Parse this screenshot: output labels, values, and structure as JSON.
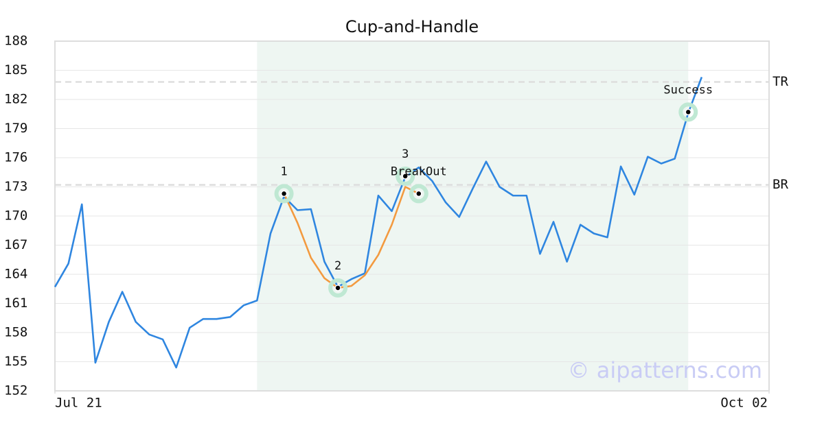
{
  "chart_data": {
    "type": "line",
    "title": "Cup-and-Handle",
    "x": [
      0,
      1,
      2,
      3,
      4,
      5,
      6,
      7,
      8,
      9,
      10,
      11,
      12,
      13,
      14,
      15,
      16,
      17,
      18,
      19,
      20,
      21,
      22,
      23,
      24,
      25,
      26,
      27,
      28,
      29,
      30,
      31,
      32,
      33,
      34,
      35,
      36,
      37,
      38,
      39,
      40,
      41,
      42,
      43,
      44,
      45,
      46,
      47,
      48
    ],
    "xlim": [
      0,
      53
    ],
    "xticks": [
      {
        "value": 0,
        "label": "Jul 21"
      },
      {
        "value": 53,
        "label": "Oct 02"
      }
    ],
    "ylim": [
      152,
      188
    ],
    "yticks": [
      152,
      155,
      158,
      161,
      164,
      167,
      170,
      173,
      176,
      179,
      182,
      185,
      188
    ],
    "grid": true,
    "series": [
      {
        "color": "#2f86e0",
        "values": [
          162.7,
          165.1,
          171.2,
          154.9,
          159.1,
          162.2,
          159.1,
          157.8,
          157.3,
          154.4,
          158.5,
          159.4,
          159.4,
          159.6,
          160.8,
          161.3,
          168.2,
          172.0,
          170.6,
          170.7,
          165.3,
          162.7,
          163.5,
          164.1,
          172.1,
          170.5,
          174.0,
          175.0,
          173.6,
          171.4,
          169.9,
          172.8,
          175.6,
          173.0,
          172.1,
          172.1,
          166.1,
          169.4,
          165.3,
          169.1,
          168.2,
          167.8,
          175.1,
          172.2,
          176.1,
          175.4,
          175.9,
          180.6,
          184.3
        ]
      },
      {
        "color": "#f39a3f",
        "x": [
          17,
          18,
          19,
          20,
          21,
          22,
          23,
          24,
          25,
          26,
          27
        ],
        "values": [
          172.3,
          169.3,
          165.7,
          163.6,
          162.6,
          162.8,
          163.9,
          166.0,
          169.1,
          173.0,
          172.3
        ]
      }
    ],
    "shaded_range": [
      15,
      47
    ],
    "levels": [
      {
        "label": "TR",
        "value": 183.8
      },
      {
        "label": "BR",
        "value": 173.2
      }
    ],
    "points": [
      {
        "label": "1",
        "x": 17,
        "y": 172.3
      },
      {
        "label": "2",
        "x": 21,
        "y": 162.6
      },
      {
        "label": "3",
        "x": 26,
        "y": 174.1
      },
      {
        "label": "BreakOut",
        "x": 27,
        "y": 172.3
      },
      {
        "label": "Success",
        "x": 47,
        "y": 180.7
      }
    ],
    "watermark": "© aipatterns.com"
  }
}
